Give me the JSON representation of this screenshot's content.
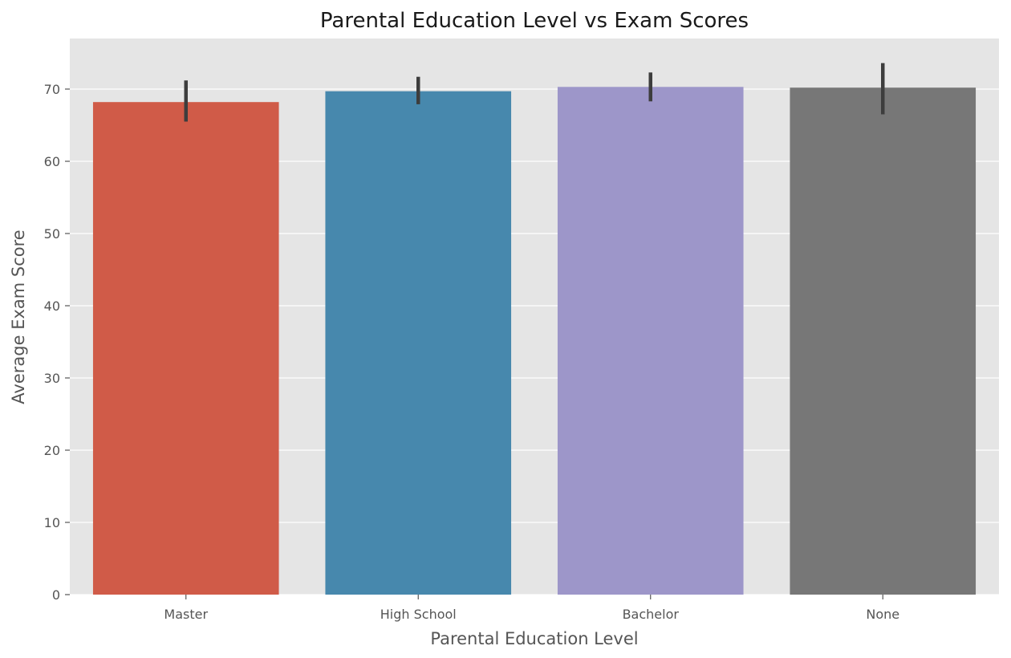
{
  "chart_data": {
    "type": "bar",
    "title": "Parental Education Level vs Exam Scores",
    "xlabel": "Parental Education Level",
    "ylabel": "Average Exam Score",
    "categories": [
      "Master",
      "High School",
      "Bachelor",
      "None"
    ],
    "values": [
      68.2,
      69.7,
      70.3,
      70.2
    ],
    "error_low": [
      65.5,
      67.9,
      68.3,
      66.5
    ],
    "error_high": [
      71.2,
      71.7,
      72.3,
      73.6
    ],
    "colors": [
      "#d05b48",
      "#4788ad",
      "#9d96c9",
      "#777777"
    ],
    "ylim": [
      0,
      77
    ],
    "yticks": [
      0,
      10,
      20,
      30,
      40,
      50,
      60,
      70
    ],
    "grid": true,
    "background": "#e5e5e5",
    "grid_color": "#ffffff",
    "error_bar_color": "#3d3d3d"
  }
}
